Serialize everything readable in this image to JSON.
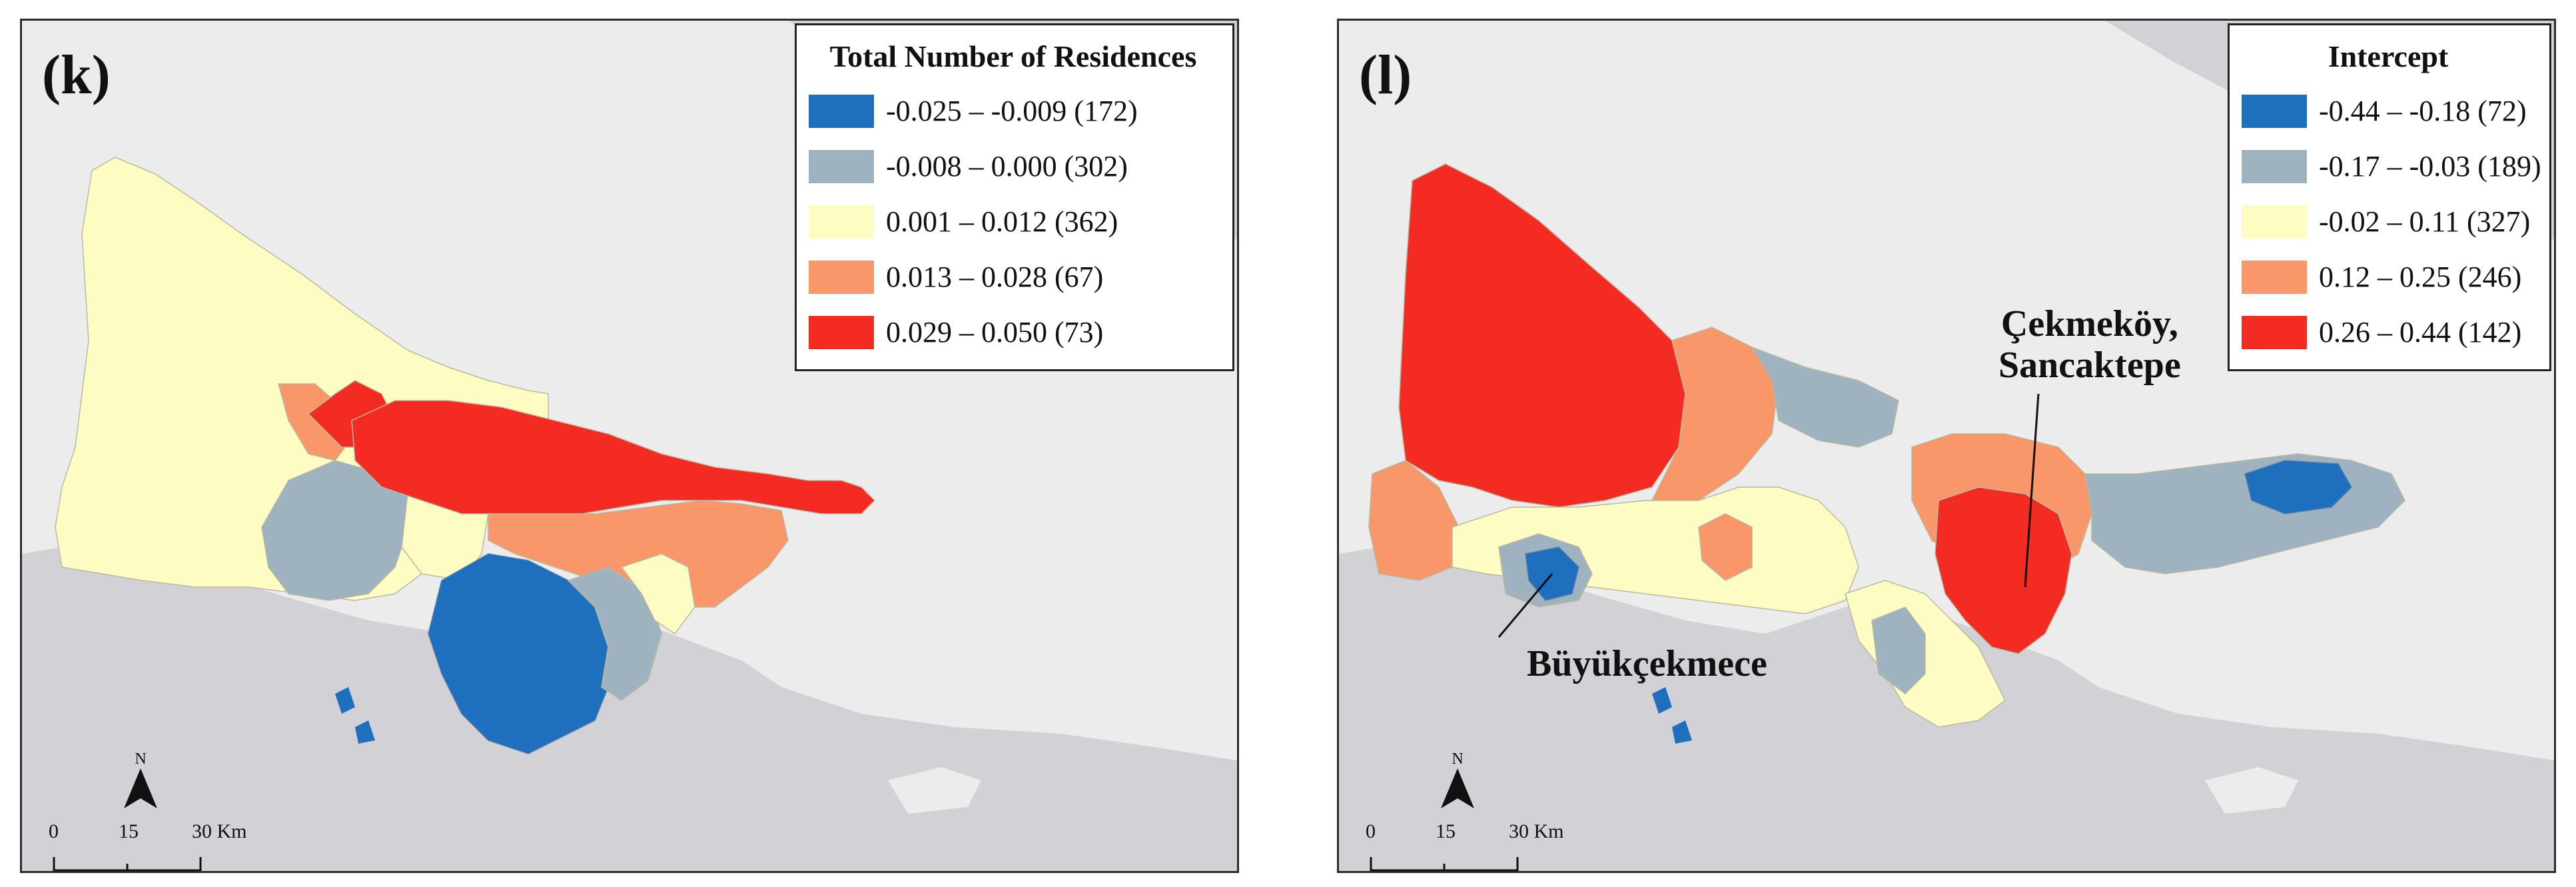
{
  "panels": [
    {
      "label": "(k)",
      "legend": {
        "title": "Total Number of Residences",
        "classes": [
          {
            "range": "-0.025 – -0.009 (172)",
            "color": "#1f6fbf"
          },
          {
            "range": "-0.008 – 0.000 (302)",
            "color": "#9eb2c0"
          },
          {
            "range": "0.001 – 0.012 (362)",
            "color": "#fdfcc2"
          },
          {
            "range": "0.013 – 0.028 (67)",
            "color": "#f9976a"
          },
          {
            "range": "0.029 – 0.050 (73)",
            "color": "#f42b22"
          }
        ]
      },
      "north_label": "N",
      "scale": {
        "ticks": [
          "0",
          "15",
          "30 Km"
        ]
      }
    },
    {
      "label": "(l)",
      "legend": {
        "title": "Intercept",
        "classes": [
          {
            "range": "-0.44 – -0.18 (72)",
            "color": "#1f6fbf"
          },
          {
            "range": "-0.17 – -0.03 (189)",
            "color": "#9eb2c0"
          },
          {
            "range": "-0.02 – 0.11 (327)",
            "color": "#fdfcc2"
          },
          {
            "range": "0.12 – 0.25 (246)",
            "color": "#f9976a"
          },
          {
            "range": "0.26 – 0.44 (142)",
            "color": "#f42b22"
          }
        ]
      },
      "annotations": {
        "cekmekoy_line1": "Çekmeköy,",
        "cekmekoy_line2": "Sancaktepe",
        "buyukcekmece": "Büyükçekmece"
      },
      "north_label": "N",
      "scale": {
        "ticks": [
          "0",
          "15",
          "30 Km"
        ]
      }
    }
  ],
  "colors": {
    "sea": "#d2d1d6",
    "land": "#ececec",
    "district_border": "#b9b9a0"
  }
}
